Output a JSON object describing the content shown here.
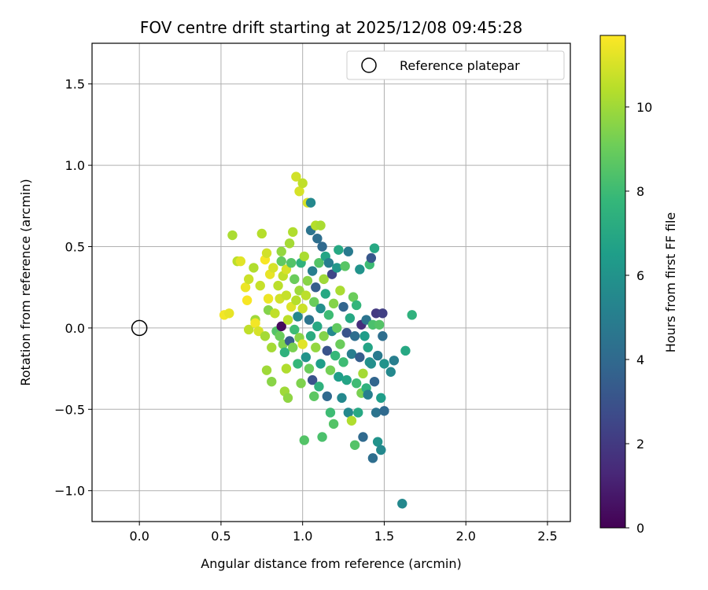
{
  "chart_data": {
    "type": "scatter",
    "title": "FOV centre drift starting at 2025/12/08 09:45:28",
    "xlabel": "Angular distance from reference (arcmin)",
    "ylabel": "Rotation from reference (arcmin)",
    "xlim": [
      -0.29,
      2.64
    ],
    "ylim": [
      -1.19,
      1.75
    ],
    "xticks": [
      0.0,
      0.5,
      1.0,
      1.5,
      2.0,
      2.5
    ],
    "xtick_labels": [
      "0.0",
      "0.5",
      "1.0",
      "1.5",
      "2.0",
      "2.5"
    ],
    "yticks": [
      -1.0,
      -0.5,
      0.0,
      0.5,
      1.0,
      1.5
    ],
    "ytick_labels": [
      "−1.0",
      "−0.5",
      "0.0",
      "0.5",
      "1.0",
      "1.5"
    ],
    "grid": true,
    "legend": {
      "position": "top-right",
      "label": "Reference platepar"
    },
    "reference_point": {
      "x": 0.0,
      "y": 0.0
    },
    "colorbar": {
      "label": "Hours from first FF file",
      "range": [
        0,
        11.7
      ],
      "ticks": [
        0,
        2,
        4,
        6,
        8,
        10
      ],
      "tick_labels": [
        "0",
        "2",
        "4",
        "6",
        "8",
        "10"
      ],
      "colormap": [
        "#440154",
        "#482878",
        "#3e4989",
        "#31688e",
        "#26828e",
        "#1f9e89",
        "#35b779",
        "#6ece58",
        "#b5de2b",
        "#fde725"
      ]
    },
    "series": [
      {
        "name": "Hours from first FF file",
        "points": [
          {
            "x": 0.52,
            "y": 0.08,
            "h": 11.5
          },
          {
            "x": 0.55,
            "y": 0.09,
            "h": 11.3
          },
          {
            "x": 0.57,
            "y": 0.57,
            "h": 10.2
          },
          {
            "x": 0.6,
            "y": 0.41,
            "h": 10.5
          },
          {
            "x": 0.62,
            "y": 0.41,
            "h": 11.2
          },
          {
            "x": 0.65,
            "y": 0.25,
            "h": 11.4
          },
          {
            "x": 0.66,
            "y": 0.17,
            "h": 11.6
          },
          {
            "x": 0.67,
            "y": 0.3,
            "h": 10.8
          },
          {
            "x": 0.67,
            "y": -0.01,
            "h": 10.6
          },
          {
            "x": 0.7,
            "y": 0.37,
            "h": 10.3
          },
          {
            "x": 0.71,
            "y": 0.05,
            "h": 10.0
          },
          {
            "x": 0.71,
            "y": 0.03,
            "h": 11.5
          },
          {
            "x": 0.73,
            "y": -0.02,
            "h": 11.0
          },
          {
            "x": 0.74,
            "y": 0.26,
            "h": 10.7
          },
          {
            "x": 0.75,
            "y": 0.58,
            "h": 10.4
          },
          {
            "x": 0.77,
            "y": 0.42,
            "h": 11.6
          },
          {
            "x": 0.77,
            "y": -0.05,
            "h": 10.1
          },
          {
            "x": 0.78,
            "y": 0.46,
            "h": 10.9
          },
          {
            "x": 0.78,
            "y": -0.26,
            "h": 10.0
          },
          {
            "x": 0.79,
            "y": 0.18,
            "h": 11.4
          },
          {
            "x": 0.79,
            "y": 0.11,
            "h": 9.5
          },
          {
            "x": 0.8,
            "y": 0.33,
            "h": 11.3
          },
          {
            "x": 0.81,
            "y": -0.33,
            "h": 9.6
          },
          {
            "x": 0.81,
            "y": -0.12,
            "h": 10.1
          },
          {
            "x": 0.82,
            "y": 0.37,
            "h": 11.0
          },
          {
            "x": 0.83,
            "y": 0.09,
            "h": 10.6
          },
          {
            "x": 0.84,
            "y": -0.02,
            "h": 8.5
          },
          {
            "x": 0.85,
            "y": 0.26,
            "h": 10.5
          },
          {
            "x": 0.86,
            "y": 0.18,
            "h": 10.9
          },
          {
            "x": 0.86,
            "y": -0.05,
            "h": 9.0
          },
          {
            "x": 0.87,
            "y": 0.47,
            "h": 9.8
          },
          {
            "x": 0.87,
            "y": 0.41,
            "h": 8.8
          },
          {
            "x": 0.87,
            "y": 0.01,
            "h": 0.3
          },
          {
            "x": 0.88,
            "y": 0.32,
            "h": 10.6
          },
          {
            "x": 0.88,
            "y": -0.1,
            "h": 9.4
          },
          {
            "x": 0.89,
            "y": -0.39,
            "h": 10.0
          },
          {
            "x": 0.89,
            "y": -0.15,
            "h": 7.5
          },
          {
            "x": 0.9,
            "y": 0.36,
            "h": 11.0
          },
          {
            "x": 0.9,
            "y": 0.2,
            "h": 10.7
          },
          {
            "x": 0.9,
            "y": -0.25,
            "h": 10.3
          },
          {
            "x": 0.91,
            "y": -0.43,
            "h": 9.7
          },
          {
            "x": 0.91,
            "y": 0.05,
            "h": 10.5
          },
          {
            "x": 0.92,
            "y": 0.52,
            "h": 10.1
          },
          {
            "x": 0.92,
            "y": -0.08,
            "h": 3.5
          },
          {
            "x": 0.93,
            "y": 0.13,
            "h": 11.1
          },
          {
            "x": 0.93,
            "y": 0.4,
            "h": 8.5
          },
          {
            "x": 0.94,
            "y": 0.59,
            "h": 10.3
          },
          {
            "x": 0.94,
            "y": -0.12,
            "h": 9.3
          },
          {
            "x": 0.95,
            "y": 0.3,
            "h": 9.0
          },
          {
            "x": 0.95,
            "y": -0.01,
            "h": 8.0
          },
          {
            "x": 0.96,
            "y": 0.93,
            "h": 10.9
          },
          {
            "x": 0.96,
            "y": 0.17,
            "h": 10.4
          },
          {
            "x": 0.97,
            "y": -0.22,
            "h": 7.8
          },
          {
            "x": 0.97,
            "y": 0.07,
            "h": 5.5
          },
          {
            "x": 0.98,
            "y": 0.84,
            "h": 11.0
          },
          {
            "x": 0.98,
            "y": 0.23,
            "h": 10.0
          },
          {
            "x": 0.98,
            "y": -0.06,
            "h": 9.6
          },
          {
            "x": 0.99,
            "y": -0.34,
            "h": 9.4
          },
          {
            "x": 0.99,
            "y": 0.4,
            "h": 7.5
          },
          {
            "x": 1.0,
            "y": 0.89,
            "h": 10.6
          },
          {
            "x": 1.0,
            "y": 0.12,
            "h": 10.8
          },
          {
            "x": 1.0,
            "y": -0.1,
            "h": 11.2
          },
          {
            "x": 1.01,
            "y": -0.69,
            "h": 8.5
          },
          {
            "x": 1.01,
            "y": 0.44,
            "h": 10.2
          },
          {
            "x": 1.02,
            "y": 0.2,
            "h": 10.5
          },
          {
            "x": 1.02,
            "y": -0.18,
            "h": 6.0
          },
          {
            "x": 1.03,
            "y": 0.77,
            "h": 11.0
          },
          {
            "x": 1.03,
            "y": 0.29,
            "h": 9.6
          },
          {
            "x": 1.04,
            "y": 0.05,
            "h": 4.5
          },
          {
            "x": 1.04,
            "y": -0.25,
            "h": 9.0
          },
          {
            "x": 1.05,
            "y": 0.77,
            "h": 5.5
          },
          {
            "x": 1.05,
            "y": 0.6,
            "h": 4.5
          },
          {
            "x": 1.05,
            "y": -0.05,
            "h": 7.2
          },
          {
            "x": 1.06,
            "y": 0.35,
            "h": 5.0
          },
          {
            "x": 1.06,
            "y": -0.32,
            "h": 3.0
          },
          {
            "x": 1.07,
            "y": 0.16,
            "h": 9.0
          },
          {
            "x": 1.07,
            "y": -0.42,
            "h": 8.7
          },
          {
            "x": 1.08,
            "y": 0.63,
            "h": 10.4
          },
          {
            "x": 1.08,
            "y": 0.25,
            "h": 3.5
          },
          {
            "x": 1.08,
            "y": -0.12,
            "h": 9.8
          },
          {
            "x": 1.09,
            "y": 0.55,
            "h": 4.2
          },
          {
            "x": 1.09,
            "y": 0.01,
            "h": 7.0
          },
          {
            "x": 1.1,
            "y": -0.36,
            "h": 7.5
          },
          {
            "x": 1.1,
            "y": 0.4,
            "h": 8.5
          },
          {
            "x": 1.11,
            "y": 0.63,
            "h": 10.2
          },
          {
            "x": 1.11,
            "y": 0.12,
            "h": 5.8
          },
          {
            "x": 1.11,
            "y": -0.22,
            "h": 6.5
          },
          {
            "x": 1.12,
            "y": 0.5,
            "h": 4.0
          },
          {
            "x": 1.12,
            "y": -0.67,
            "h": 8.3
          },
          {
            "x": 1.13,
            "y": 0.3,
            "h": 10.0
          },
          {
            "x": 1.13,
            "y": -0.05,
            "h": 9.5
          },
          {
            "x": 1.14,
            "y": 0.44,
            "h": 6.8
          },
          {
            "x": 1.14,
            "y": 0.21,
            "h": 7.0
          },
          {
            "x": 1.15,
            "y": -0.14,
            "h": 3.0
          },
          {
            "x": 1.15,
            "y": -0.42,
            "h": 4.0
          },
          {
            "x": 1.16,
            "y": 0.4,
            "h": 5.0
          },
          {
            "x": 1.16,
            "y": 0.08,
            "h": 8.0
          },
          {
            "x": 1.17,
            "y": -0.26,
            "h": 9.2
          },
          {
            "x": 1.17,
            "y": -0.52,
            "h": 8.0
          },
          {
            "x": 1.18,
            "y": 0.33,
            "h": 2.5
          },
          {
            "x": 1.18,
            "y": -0.02,
            "h": 5.5
          },
          {
            "x": 1.19,
            "y": -0.59,
            "h": 8.5
          },
          {
            "x": 1.19,
            "y": 0.15,
            "h": 9.5
          },
          {
            "x": 1.2,
            "y": -0.17,
            "h": 7.8
          },
          {
            "x": 1.21,
            "y": 0.37,
            "h": 6.2
          },
          {
            "x": 1.21,
            "y": 0.0,
            "h": 8.8
          },
          {
            "x": 1.22,
            "y": 0.48,
            "h": 7.0
          },
          {
            "x": 1.22,
            "y": -0.3,
            "h": 6.5
          },
          {
            "x": 1.23,
            "y": 0.23,
            "h": 10.2
          },
          {
            "x": 1.23,
            "y": -0.1,
            "h": 9.0
          },
          {
            "x": 1.24,
            "y": -0.43,
            "h": 5.5
          },
          {
            "x": 1.25,
            "y": 0.13,
            "h": 3.8
          },
          {
            "x": 1.25,
            "y": -0.21,
            "h": 8.0
          },
          {
            "x": 1.26,
            "y": 0.38,
            "h": 8.6
          },
          {
            "x": 1.27,
            "y": -0.03,
            "h": 3.0
          },
          {
            "x": 1.27,
            "y": -0.32,
            "h": 6.8
          },
          {
            "x": 1.28,
            "y": 0.47,
            "h": 4.8
          },
          {
            "x": 1.28,
            "y": -0.52,
            "h": 5.5
          },
          {
            "x": 1.29,
            "y": 0.06,
            "h": 7.0
          },
          {
            "x": 1.3,
            "y": -0.57,
            "h": 10.3
          },
          {
            "x": 1.3,
            "y": -0.16,
            "h": 5.0
          },
          {
            "x": 1.31,
            "y": 0.19,
            "h": 9.0
          },
          {
            "x": 1.32,
            "y": -0.72,
            "h": 8.5
          },
          {
            "x": 1.32,
            "y": -0.05,
            "h": 4.2
          },
          {
            "x": 1.33,
            "y": 0.14,
            "h": 7.7
          },
          {
            "x": 1.33,
            "y": -0.34,
            "h": 8.0
          },
          {
            "x": 1.34,
            "y": -0.52,
            "h": 7.0
          },
          {
            "x": 1.35,
            "y": 0.36,
            "h": 6.0
          },
          {
            "x": 1.35,
            "y": -0.18,
            "h": 3.5
          },
          {
            "x": 1.36,
            "y": 0.02,
            "h": 1.5
          },
          {
            "x": 1.36,
            "y": -0.4,
            "h": 9.3
          },
          {
            "x": 1.37,
            "y": -0.28,
            "h": 10.1
          },
          {
            "x": 1.37,
            "y": -0.67,
            "h": 4.0
          },
          {
            "x": 1.38,
            "y": -0.05,
            "h": 6.5
          },
          {
            "x": 1.39,
            "y": 0.05,
            "h": 4.5
          },
          {
            "x": 1.39,
            "y": -0.37,
            "h": 7.5
          },
          {
            "x": 1.4,
            "y": -0.12,
            "h": 6.8
          },
          {
            "x": 1.4,
            "y": -0.41,
            "h": 5.0
          },
          {
            "x": 1.41,
            "y": 0.39,
            "h": 8.0
          },
          {
            "x": 1.41,
            "y": -0.21,
            "h": 6.0
          },
          {
            "x": 1.42,
            "y": 0.43,
            "h": 3.2
          },
          {
            "x": 1.42,
            "y": -0.22,
            "h": 5.8
          },
          {
            "x": 1.43,
            "y": 0.02,
            "h": 8.3
          },
          {
            "x": 1.43,
            "y": -0.8,
            "h": 4.2
          },
          {
            "x": 1.44,
            "y": 0.49,
            "h": 7.0
          },
          {
            "x": 1.44,
            "y": -0.33,
            "h": 3.8
          },
          {
            "x": 1.45,
            "y": 0.09,
            "h": 2.0
          },
          {
            "x": 1.45,
            "y": -0.52,
            "h": 4.5
          },
          {
            "x": 1.46,
            "y": -0.17,
            "h": 4.8
          },
          {
            "x": 1.46,
            "y": -0.7,
            "h": 6.0
          },
          {
            "x": 1.47,
            "y": 0.02,
            "h": 8.5
          },
          {
            "x": 1.48,
            "y": -0.75,
            "h": 5.5
          },
          {
            "x": 1.48,
            "y": -0.43,
            "h": 6.5
          },
          {
            "x": 1.49,
            "y": 0.09,
            "h": 2.2
          },
          {
            "x": 1.49,
            "y": -0.05,
            "h": 4.2
          },
          {
            "x": 1.5,
            "y": -0.22,
            "h": 6.0
          },
          {
            "x": 1.5,
            "y": -0.51,
            "h": 4.0
          },
          {
            "x": 1.54,
            "y": -0.27,
            "h": 5.5
          },
          {
            "x": 1.56,
            "y": -0.2,
            "h": 5.0
          },
          {
            "x": 1.61,
            "y": -1.08,
            "h": 5.5
          },
          {
            "x": 1.63,
            "y": -0.14,
            "h": 7.0
          },
          {
            "x": 1.67,
            "y": 0.08,
            "h": 7.5
          }
        ]
      }
    ]
  }
}
